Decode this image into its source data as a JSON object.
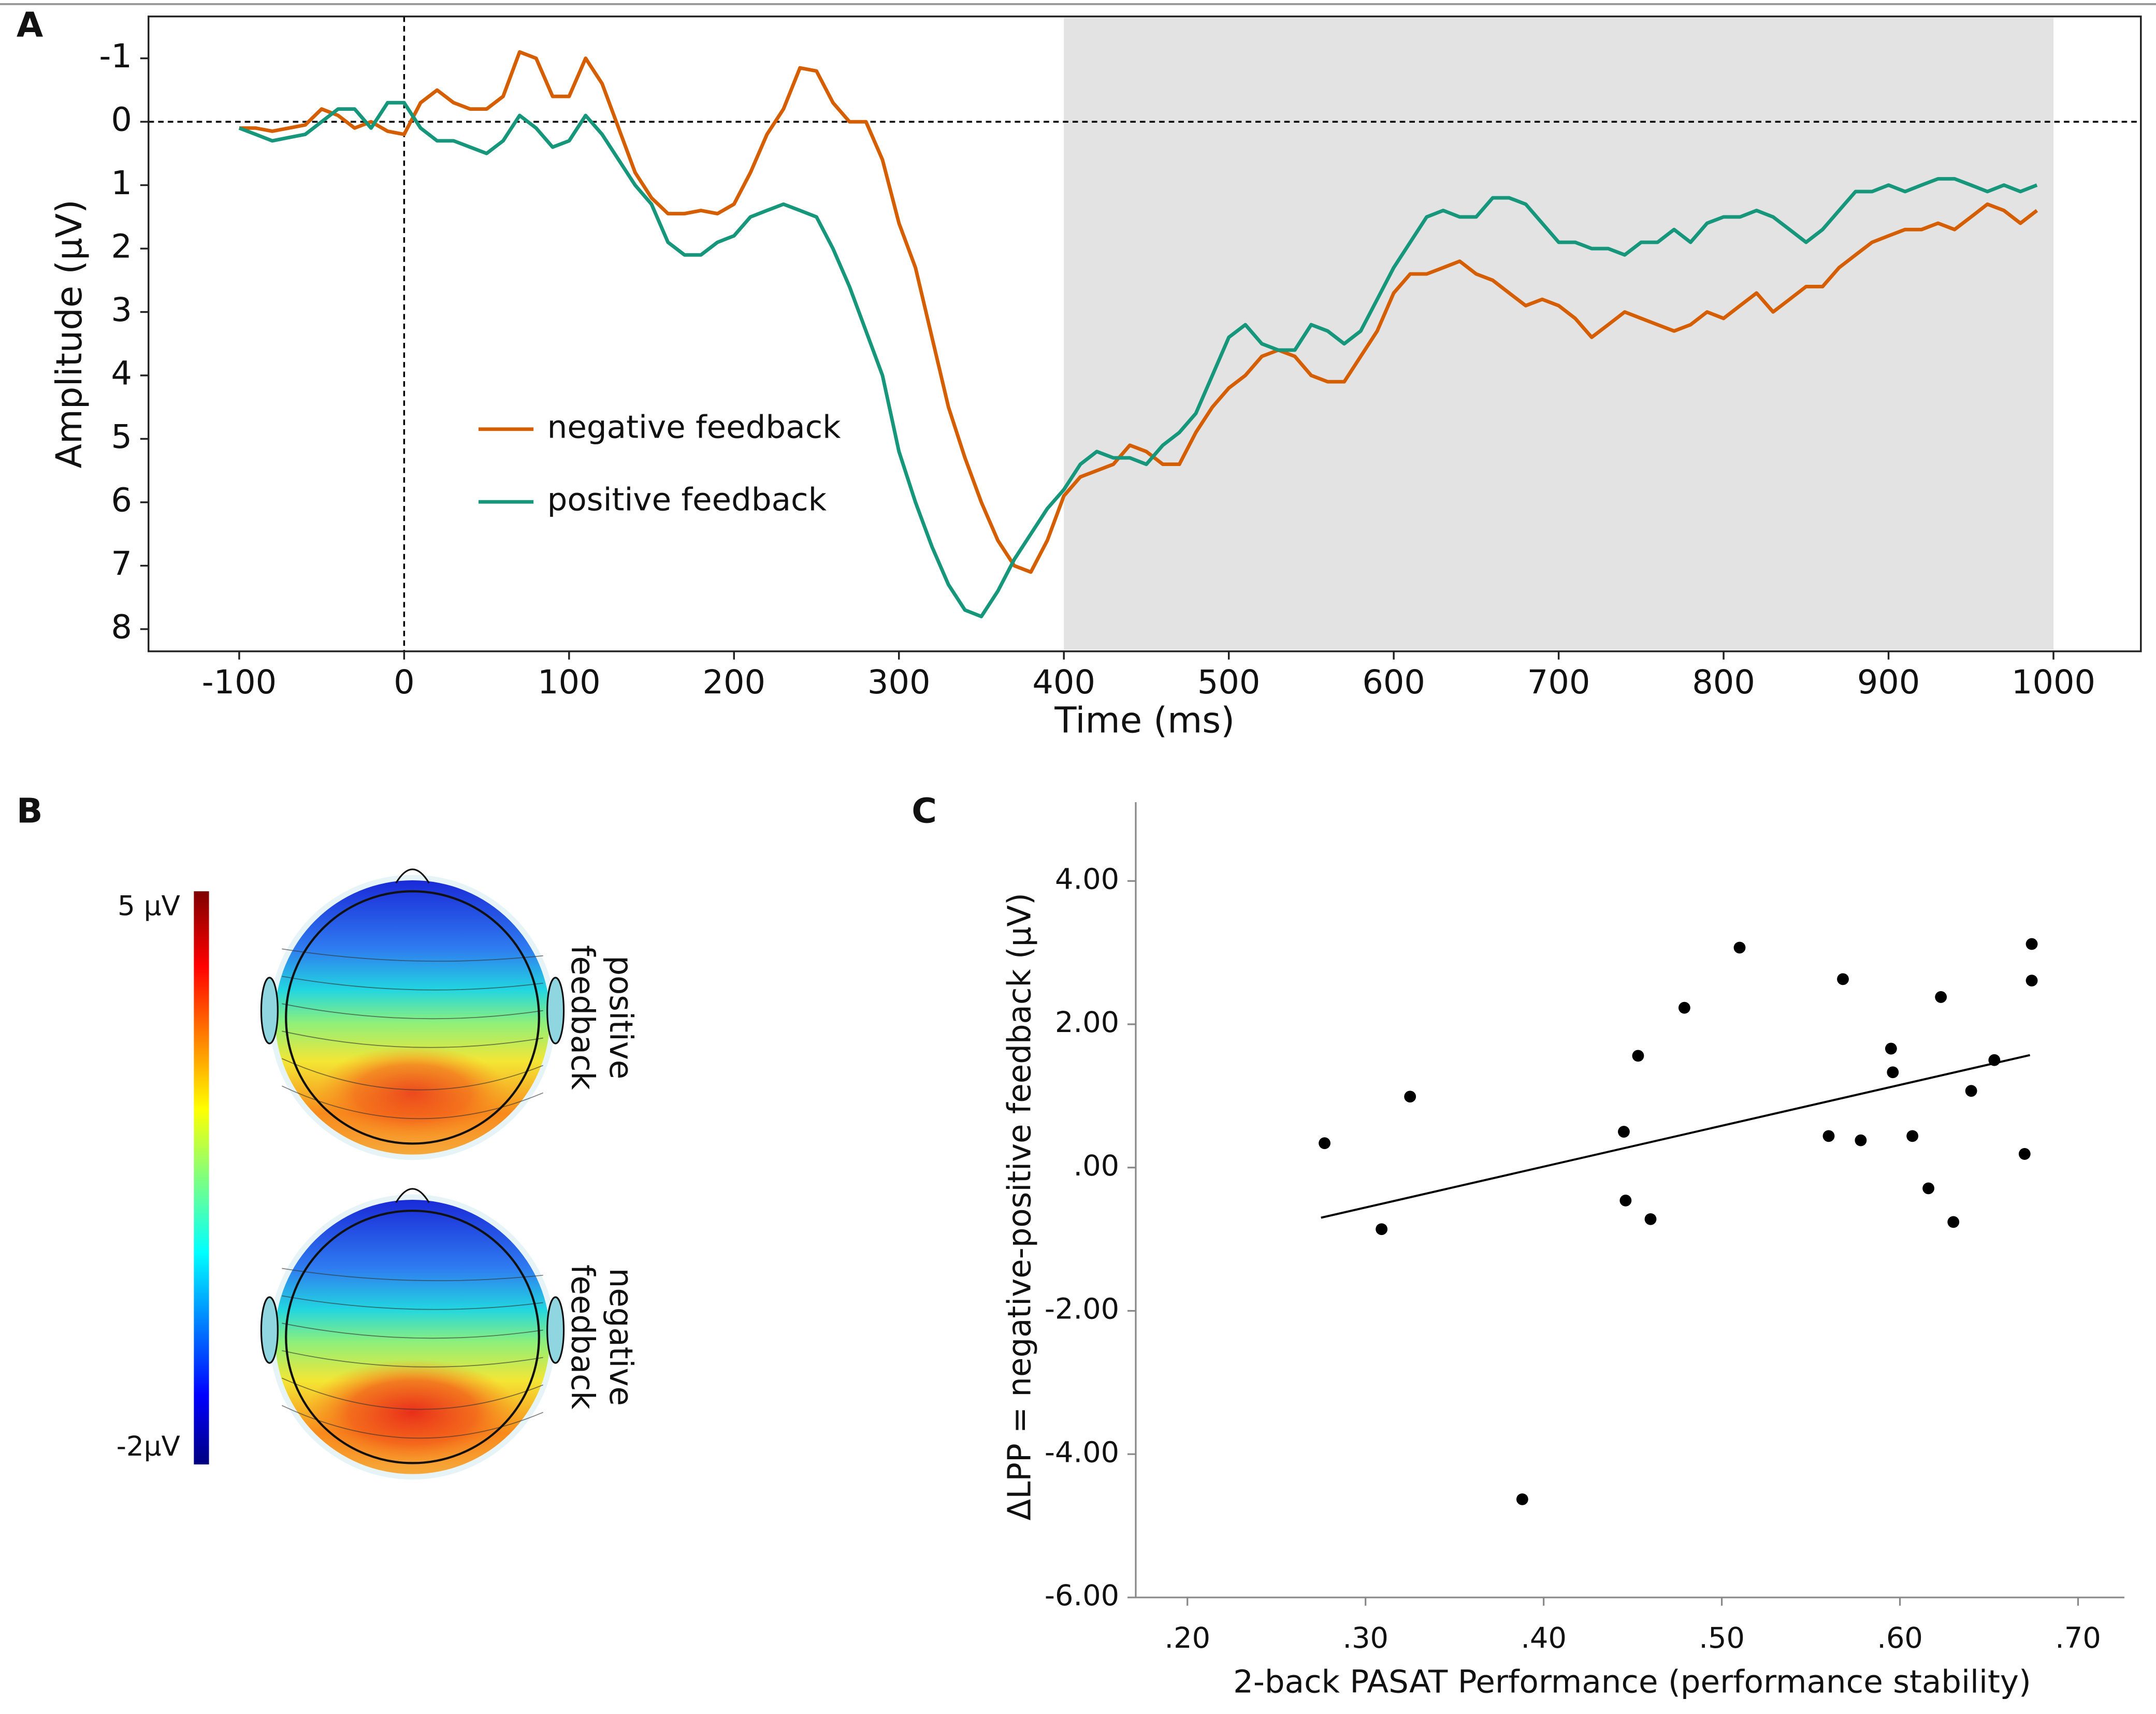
{
  "chart_data": [
    {
      "type": "line",
      "panel": "A",
      "xlabel": "Time (ms)",
      "ylabel": "Amplitude (µV)",
      "xlim": [
        -155,
        1053
      ],
      "ylim": [
        -1.66,
        8.35
      ],
      "y_inverted": true,
      "xticks": [
        -100,
        0,
        100,
        200,
        300,
        400,
        500,
        600,
        700,
        800,
        900,
        1000
      ],
      "yticks": [
        -1,
        0,
        1,
        2,
        3,
        4,
        5,
        6,
        7,
        8
      ],
      "shaded_x": [
        400,
        1000
      ],
      "shade_color": "#e3e3e3",
      "hlines": [
        0
      ],
      "vlines": [
        0
      ],
      "x": [
        -100,
        -90,
        -80,
        -70,
        -60,
        -50,
        -40,
        -30,
        -20,
        -10,
        0,
        10,
        20,
        30,
        40,
        50,
        60,
        70,
        80,
        90,
        100,
        110,
        120,
        130,
        140,
        150,
        160,
        170,
        180,
        190,
        200,
        210,
        220,
        230,
        240,
        250,
        260,
        270,
        280,
        290,
        300,
        310,
        320,
        330,
        340,
        350,
        360,
        370,
        380,
        390,
        400,
        410,
        420,
        430,
        440,
        450,
        460,
        470,
        480,
        490,
        500,
        510,
        520,
        530,
        540,
        550,
        560,
        570,
        580,
        590,
        600,
        610,
        620,
        630,
        640,
        650,
        660,
        670,
        680,
        690,
        700,
        710,
        720,
        730,
        740,
        750,
        760,
        770,
        780,
        790,
        800,
        810,
        820,
        830,
        840,
        850,
        860,
        870,
        880,
        890,
        900,
        910,
        920,
        930,
        940,
        950,
        960,
        970,
        980,
        990
      ],
      "series": [
        {
          "name": "negative feedback",
          "color": "#d55e00",
          "values": [
            0.1,
            0.1,
            0.15,
            0.1,
            0.05,
            -0.2,
            -0.1,
            0.1,
            0,
            0.15,
            0.2,
            -0.3,
            -0.5,
            -0.3,
            -0.2,
            -0.2,
            -0.4,
            -1.1,
            -1.0,
            -0.4,
            -0.4,
            -1.0,
            -0.6,
            0.1,
            0.8,
            1.2,
            1.45,
            1.45,
            1.4,
            1.45,
            1.3,
            0.8,
            0.2,
            -0.2,
            -0.85,
            -0.8,
            -0.3,
            0,
            0,
            0.6,
            1.6,
            2.3,
            3.4,
            4.5,
            5.3,
            6.0,
            6.6,
            7.0,
            7.1,
            6.6,
            5.9,
            5.6,
            5.5,
            5.4,
            5.1,
            5.2,
            5.4,
            5.4,
            4.9,
            4.5,
            4.2,
            4.0,
            3.7,
            3.6,
            3.7,
            4.0,
            4.1,
            4.1,
            3.7,
            3.3,
            2.7,
            2.4,
            2.4,
            2.3,
            2.2,
            2.4,
            2.5,
            2.7,
            2.9,
            2.8,
            2.9,
            3.1,
            3.4,
            3.2,
            3.0,
            3.1,
            3.2,
            3.3,
            3.2,
            3.0,
            3.1,
            2.9,
            2.7,
            3.0,
            2.8,
            2.6,
            2.6,
            2.3,
            2.1,
            1.9,
            1.8,
            1.7,
            1.7,
            1.6,
            1.7,
            1.5,
            1.3,
            1.4,
            1.6,
            1.4
          ]
        },
        {
          "name": "positive feedback",
          "color": "#16967a",
          "values": [
            0.1,
            0.2,
            0.3,
            0.25,
            0.2,
            0,
            -0.2,
            -0.2,
            0.1,
            -0.3,
            -0.3,
            0.1,
            0.3,
            0.3,
            0.4,
            0.5,
            0.3,
            -0.1,
            0.1,
            0.4,
            0.3,
            -0.1,
            0.2,
            0.6,
            1.0,
            1.3,
            1.9,
            2.1,
            2.1,
            1.9,
            1.8,
            1.5,
            1.4,
            1.3,
            1.4,
            1.5,
            2.0,
            2.6,
            3.3,
            4.0,
            5.2,
            6.0,
            6.7,
            7.3,
            7.7,
            7.8,
            7.4,
            6.9,
            6.5,
            6.1,
            5.8,
            5.4,
            5.2,
            5.3,
            5.3,
            5.4,
            5.1,
            4.9,
            4.6,
            4.0,
            3.4,
            3.2,
            3.5,
            3.6,
            3.6,
            3.2,
            3.3,
            3.5,
            3.3,
            2.8,
            2.3,
            1.9,
            1.5,
            1.4,
            1.5,
            1.5,
            1.2,
            1.2,
            1.3,
            1.6,
            1.9,
            1.9,
            2.0,
            2.0,
            2.1,
            1.9,
            1.9,
            1.7,
            1.9,
            1.6,
            1.5,
            1.5,
            1.4,
            1.5,
            1.7,
            1.9,
            1.7,
            1.4,
            1.1,
            1.1,
            1.0,
            1.1,
            1.0,
            0.9,
            0.9,
            1.0,
            1.1,
            1.0,
            1.1,
            1.0
          ]
        }
      ]
    },
    {
      "type": "topomap",
      "panel": "B",
      "clim": [
        -2,
        5
      ],
      "cticks": [
        {
          "value": 5,
          "label": "5 µV"
        },
        {
          "value": -2,
          "label": "-2µV"
        }
      ],
      "maps": [
        {
          "label": [
            "positive",
            "feedback"
          ],
          "peak": 3.2
        },
        {
          "label": [
            "negative",
            "feedback"
          ],
          "peak": 4.6
        }
      ]
    },
    {
      "type": "scatter",
      "panel": "C",
      "xlabel": "2-back PASAT Performance (performance stability)",
      "ylabel": "ΔLPP = negative-positive feedback (µV)",
      "xlim": [
        0.171,
        0.726
      ],
      "ylim": [
        -6,
        5.1
      ],
      "xticks": [
        {
          "value": 0.2,
          "label": ".20"
        },
        {
          "value": 0.3,
          "label": ".30"
        },
        {
          "value": 0.4,
          "label": ".40"
        },
        {
          "value": 0.5,
          "label": ".50"
        },
        {
          "value": 0.6,
          "label": ".60"
        },
        {
          "value": 0.7,
          "label": ".70"
        }
      ],
      "yticks": [
        {
          "value": 4,
          "label": "4.00"
        },
        {
          "value": 2,
          "label": "2.00"
        },
        {
          "value": 0,
          "label": ".00"
        },
        {
          "value": -2,
          "label": "-2.00"
        },
        {
          "value": -4,
          "label": "-4.00"
        },
        {
          "value": -6,
          "label": "-6.00"
        }
      ],
      "color": "#000000",
      "x": [
        0.277,
        0.309,
        0.325,
        0.388,
        0.445,
        0.446,
        0.453,
        0.46,
        0.479,
        0.51,
        0.56,
        0.568,
        0.578,
        0.595,
        0.596,
        0.607,
        0.616,
        0.623,
        0.63,
        0.64,
        0.653,
        0.67,
        0.674,
        0.674
      ],
      "values": [
        0.34,
        -0.86,
        0.99,
        -4.63,
        0.5,
        -0.46,
        1.56,
        -0.72,
        2.23,
        3.07,
        0.44,
        2.63,
        0.38,
        1.66,
        1.33,
        0.44,
        -0.29,
        2.38,
        -0.76,
        1.07,
        1.5,
        0.19,
        2.61,
        3.12
      ],
      "trend_line": {
        "x": [
          0.275,
          0.673
        ],
        "values": [
          -0.7,
          1.57
        ]
      }
    }
  ]
}
